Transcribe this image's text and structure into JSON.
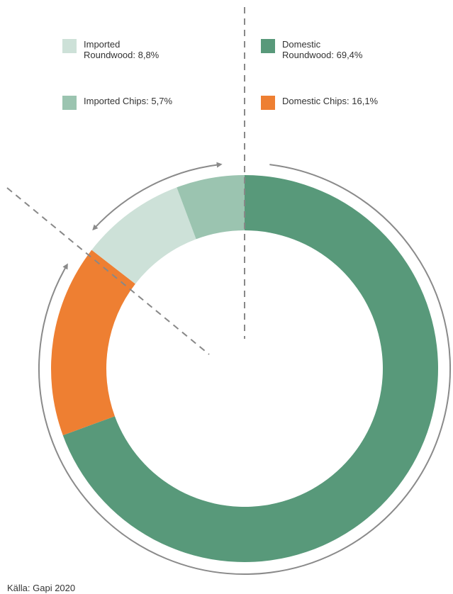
{
  "chart_data": {
    "type": "pie",
    "categories": [
      "Domestic\nRoundwood: 69,4%",
      "Domestic Chips: 16,1%",
      "Imported\nRoundwood: 8,8%",
      "Imported Chips: 5,7%"
    ],
    "values": [
      69.4,
      16.1,
      8.8,
      5.7
    ],
    "colors": [
      "#58997a",
      "#ee7f32",
      "#cde1d8",
      "#9bc4b0"
    ],
    "source": "Källa: Gapi 2020"
  }
}
